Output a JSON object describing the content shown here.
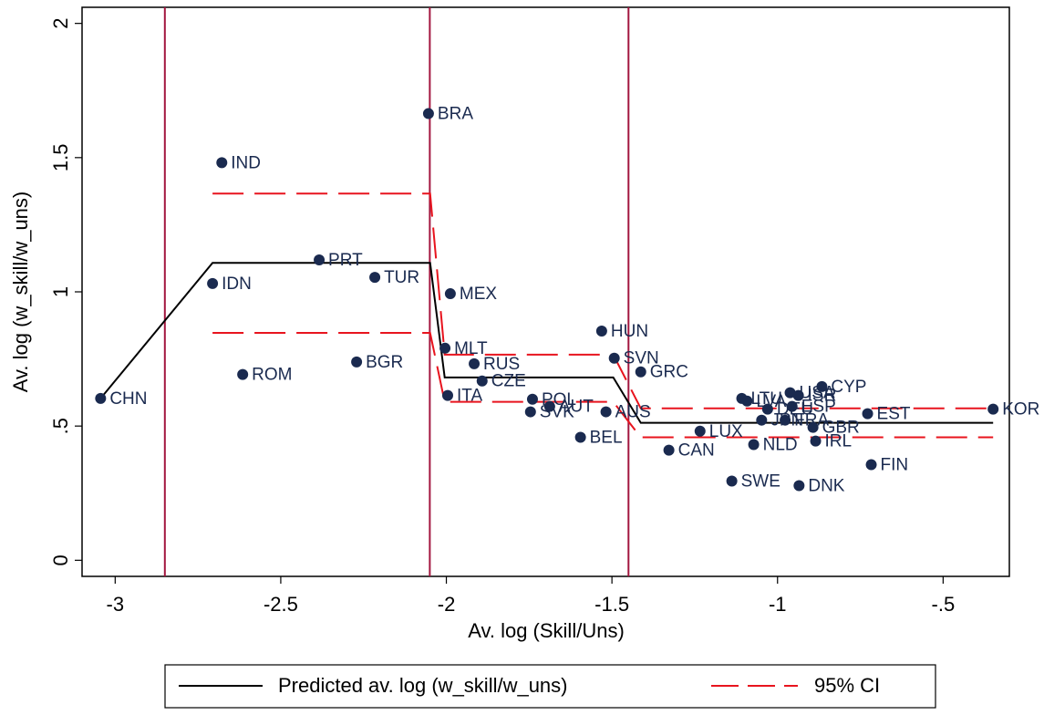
{
  "chart_data": {
    "type": "scatter",
    "xlabel": "Av. log (Skill/Uns)",
    "ylabel": "Av. log (w_skill/w_uns)",
    "xlim": [
      -3.1,
      -0.3
    ],
    "ylim": [
      -0.06,
      2.06
    ],
    "xticks": [
      -3,
      -2.5,
      -2,
      -1.5,
      -1,
      {
        "value": -0.5,
        "label": "-.5"
      }
    ],
    "yticks": [
      0,
      {
        "value": 0.5,
        "label": ".5"
      },
      1,
      1.5,
      2
    ],
    "point_color": "#1a2a4f",
    "points": {
      "labels": [
        "CHN",
        "IND",
        "IDN",
        "ROM",
        "PRT",
        "TUR",
        "BGR",
        "BRA",
        "MEX",
        "MLT",
        "ITA",
        "RUS",
        "CZE",
        "POL",
        "SVK",
        "AUT",
        "AUS",
        "BEL",
        "HUN",
        "SVN",
        "GRC",
        "CAN",
        "LUX",
        "SWE",
        "NLD",
        "DNK",
        "FIN",
        "IRL",
        "GBR",
        "EST",
        "CYP",
        "KOR",
        "LTU",
        "LVA",
        "USA",
        "ISR",
        "ESP",
        "DEU",
        "JPN",
        "FRA"
      ],
      "x": [
        -3.044,
        -2.678,
        -2.706,
        -2.615,
        -2.384,
        -2.216,
        -2.271,
        -2.054,
        -1.988,
        -2.004,
        -1.996,
        -1.916,
        -1.892,
        -1.74,
        -1.746,
        -1.688,
        -1.518,
        -1.595,
        -1.531,
        -1.493,
        -1.413,
        -1.328,
        -1.234,
        -1.138,
        -1.072,
        -0.935,
        -0.717,
        -0.885,
        -0.893,
        -0.728,
        -0.866,
        -0.349,
        -1.108,
        -1.092,
        -0.962,
        -0.937,
        -0.956,
        -1.03,
        -1.048,
        -0.977
      ],
      "values": [
        0.603,
        1.481,
        1.031,
        0.692,
        1.119,
        1.054,
        0.739,
        1.664,
        0.993,
        0.79,
        0.614,
        0.732,
        0.668,
        0.6,
        0.553,
        0.573,
        0.553,
        0.458,
        0.854,
        0.753,
        0.702,
        0.41,
        0.481,
        0.295,
        0.431,
        0.278,
        0.356,
        0.444,
        0.495,
        0.546,
        0.647,
        0.563,
        0.603,
        0.593,
        0.624,
        0.614,
        0.573,
        0.563,
        0.522,
        0.522
      ]
    },
    "lines": [
      {
        "name": "Predicted av. log (w_skill/w_uns)",
        "color": "#000000",
        "dashed": false,
        "x": [
          -3.044,
          -2.706,
          -2.049,
          -2.005,
          -1.496,
          -1.413,
          -0.349
        ],
        "values": [
          0.603,
          1.108,
          1.108,
          0.681,
          0.681,
          0.512,
          0.512
        ]
      },
      {
        "name": "95% CI",
        "color": "#e8141e",
        "dashed": true,
        "x": [
          -2.706,
          -2.049,
          -2.005,
          -1.496,
          -1.413,
          -0.349
        ],
        "values": [
          1.366,
          1.366,
          0.766,
          0.766,
          0.566,
          0.566
        ]
      },
      {
        "color": "#e8141e",
        "dashed": true,
        "x": [
          -2.706,
          -2.049,
          -2.005,
          -1.496,
          -1.413,
          -0.349
        ],
        "values": [
          0.847,
          0.847,
          0.59,
          0.59,
          0.458,
          0.458
        ]
      }
    ],
    "xlines": [
      -2.85,
      -2.05,
      -1.45
    ],
    "xline_color": "#a3163f"
  }
}
